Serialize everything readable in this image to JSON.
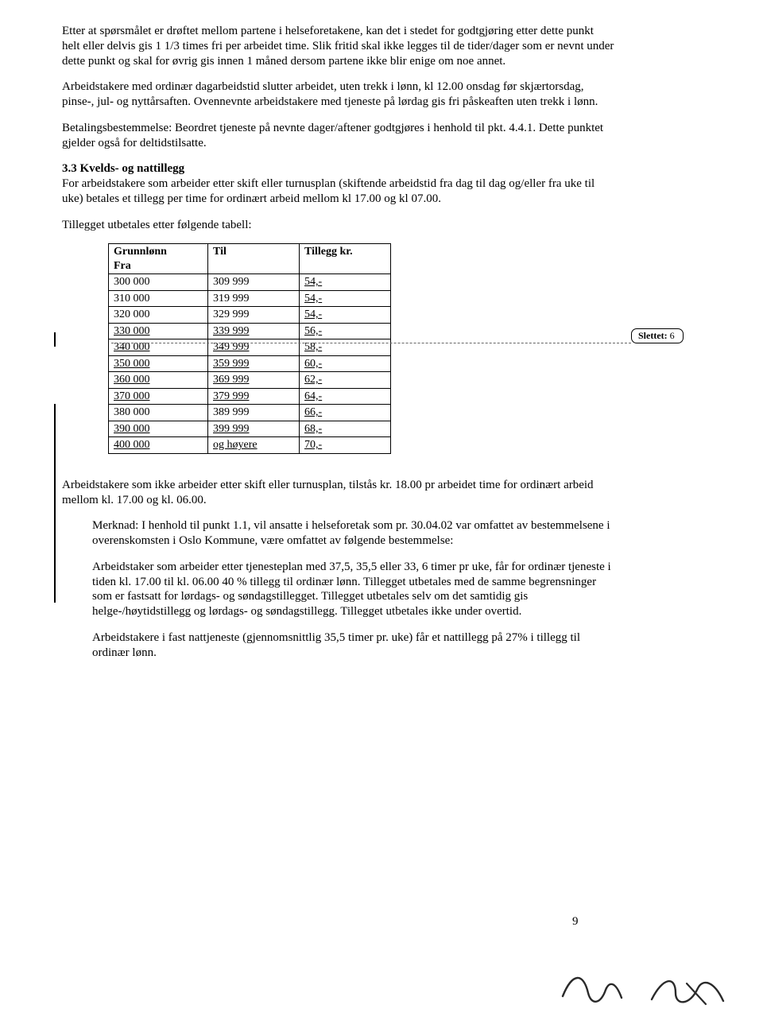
{
  "paragraphs": {
    "p1": "Etter at spørsmålet er drøftet mellom partene i helseforetakene, kan det i stedet for godtgjøring etter dette punkt helt eller delvis gis 1 1/3 times fri per arbeidet time. Slik fritid skal ikke legges til de tider/dager som er nevnt under dette punkt og skal for øvrig gis innen 1 måned dersom partene ikke blir enige om noe annet.",
    "p2": "Arbeidstakere med ordinær dagarbeidstid slutter arbeidet, uten trekk i lønn, kl 12.00 onsdag før skjærtorsdag, pinse-, jul- og nyttårsaften. Ovennevnte arbeidstakere med tjeneste på lørdag gis fri påskeaften uten trekk i lønn.",
    "p3": "Betalingsbestemmelse: Beordret tjeneste på nevnte dager/aftener godtgjøres i henhold til pkt. 4.4.1. Dette punktet gjelder også for deltidstilsatte.",
    "section_title": "3.3 Kvelds- og nattillegg",
    "p4_a": "For arbeidstakere som arbeider etter skift eller turnusplan (skiftende arbeidstid fra dag til dag og/eller fra uke til uke) betales et tillegg per time for ordinært arbeid mellom kl 17.00 og kl ",
    "p4_b": "07.00.",
    "p5": "Tillegget utbetales etter følgende tabell:",
    "p6": "Arbeidstakere som ikke arbeider etter skift eller turnusplan, tilstås kr. 18.00 pr arbeidet time for ordinært arbeid mellom kl. 17.00 og kl. 06.00.",
    "p7": "Merknad: I henhold til punkt 1.1, vil ansatte i helseforetak som pr. 30.04.02 var omfattet av bestemmelsene i overenskomsten i Oslo Kommune, være omfattet av følgende bestemmelse:",
    "p8": "Arbeidstaker som arbeider etter tjenesteplan med 37,5, 35,5 eller 33, 6 timer pr uke, får for ordinær tjeneste i tiden kl. 17.00 til kl. 06.00 40 % tillegg til ordinær lønn. Tillegget utbetales med de samme begrensninger som er fastsatt for lørdags- og søndagstillegget. Tillegget utbetales selv om det samtidig gis helge-/høytidstillegg og lørdags- og søndagstillegg. Tillegget utbetales ikke under overtid.",
    "p9": "Arbeidstakere i fast nattjeneste (gjennomsnittlig 35,5 timer pr. uke) får et nattillegg på 27% i tillegg til ordinær lønn."
  },
  "comment": {
    "label": "Slettet:",
    "value": "6"
  },
  "table": {
    "headers": {
      "fra": "Grunnlønn Fra",
      "til": "Til",
      "kr": "Tillegg kr."
    },
    "rows": [
      {
        "fra": "300 000",
        "til": "309 999",
        "kr": "54,-",
        "u_fra": false,
        "u_til": false,
        "u_kr": true
      },
      {
        "fra": "310 000",
        "til": "319 999",
        "kr": "54,-",
        "u_fra": false,
        "u_til": false,
        "u_kr": true
      },
      {
        "fra": "320 000",
        "til": "329 999",
        "kr": "54,-",
        "u_fra": false,
        "u_til": false,
        "u_kr": true
      },
      {
        "fra": "330 000",
        "til": "339 999",
        "kr": "56,-",
        "u_fra": true,
        "u_til": true,
        "u_kr": true
      },
      {
        "fra": "340 000",
        "til": "349 999",
        "kr": "58,-",
        "u_fra": true,
        "u_til": true,
        "u_kr": true
      },
      {
        "fra": "350 000",
        "til": "359 999",
        "kr": "60,-",
        "u_fra": true,
        "u_til": true,
        "u_kr": true
      },
      {
        "fra": "360 000",
        "til": "369 999",
        "kr": "62,-",
        "u_fra": true,
        "u_til": true,
        "u_kr": true
      },
      {
        "fra": "370 000",
        "til": "379 999",
        "kr": "64,-",
        "u_fra": true,
        "u_til": true,
        "u_kr": true
      },
      {
        "fra": "380 000",
        "til": "389 999",
        "kr": "66,-",
        "u_fra": false,
        "u_til": false,
        "u_kr": true
      },
      {
        "fra": "390 000",
        "til": "399 999",
        "kr": "68,-",
        "u_fra": true,
        "u_til": true,
        "u_kr": true
      },
      {
        "fra": "400 000",
        "til": "og høyere",
        "kr": "70,-",
        "u_fra": true,
        "u_til": true,
        "u_kr": true
      }
    ]
  },
  "page_number": "9",
  "colors": {
    "text": "#000000",
    "background": "#ffffff",
    "dash": "#888888",
    "sig1": "#2a2a2a",
    "sig2": "#2a2a2a"
  }
}
